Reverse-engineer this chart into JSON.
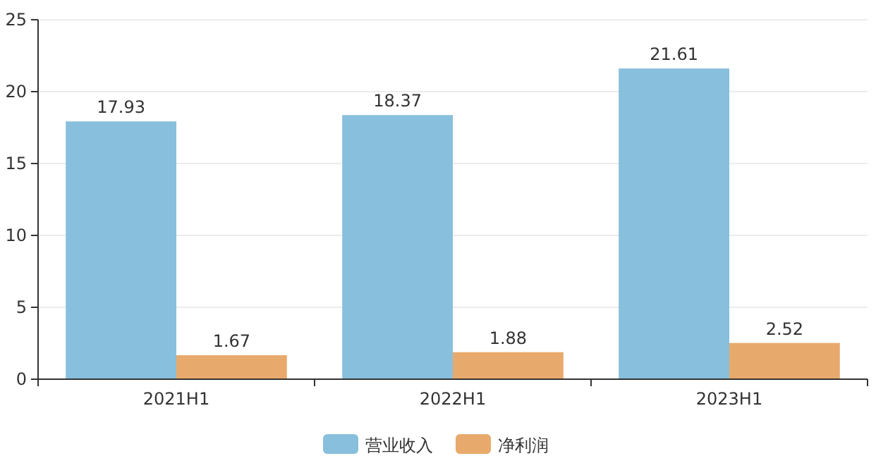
{
  "chart_data": {
    "type": "bar",
    "categories": [
      "2021H1",
      "2022H1",
      "2023H1"
    ],
    "series": [
      {
        "name": "营业收入",
        "color": "#88bfdc",
        "values": [
          17.93,
          18.37,
          21.61
        ]
      },
      {
        "name": "净利润",
        "color": "#e8aa6c",
        "values": [
          1.67,
          1.88,
          2.52
        ]
      }
    ],
    "ylim": [
      0,
      25
    ],
    "yticks": [
      0,
      5,
      10,
      15,
      20,
      25
    ],
    "grid": "y",
    "legend": "bottom",
    "data_labels": true
  }
}
